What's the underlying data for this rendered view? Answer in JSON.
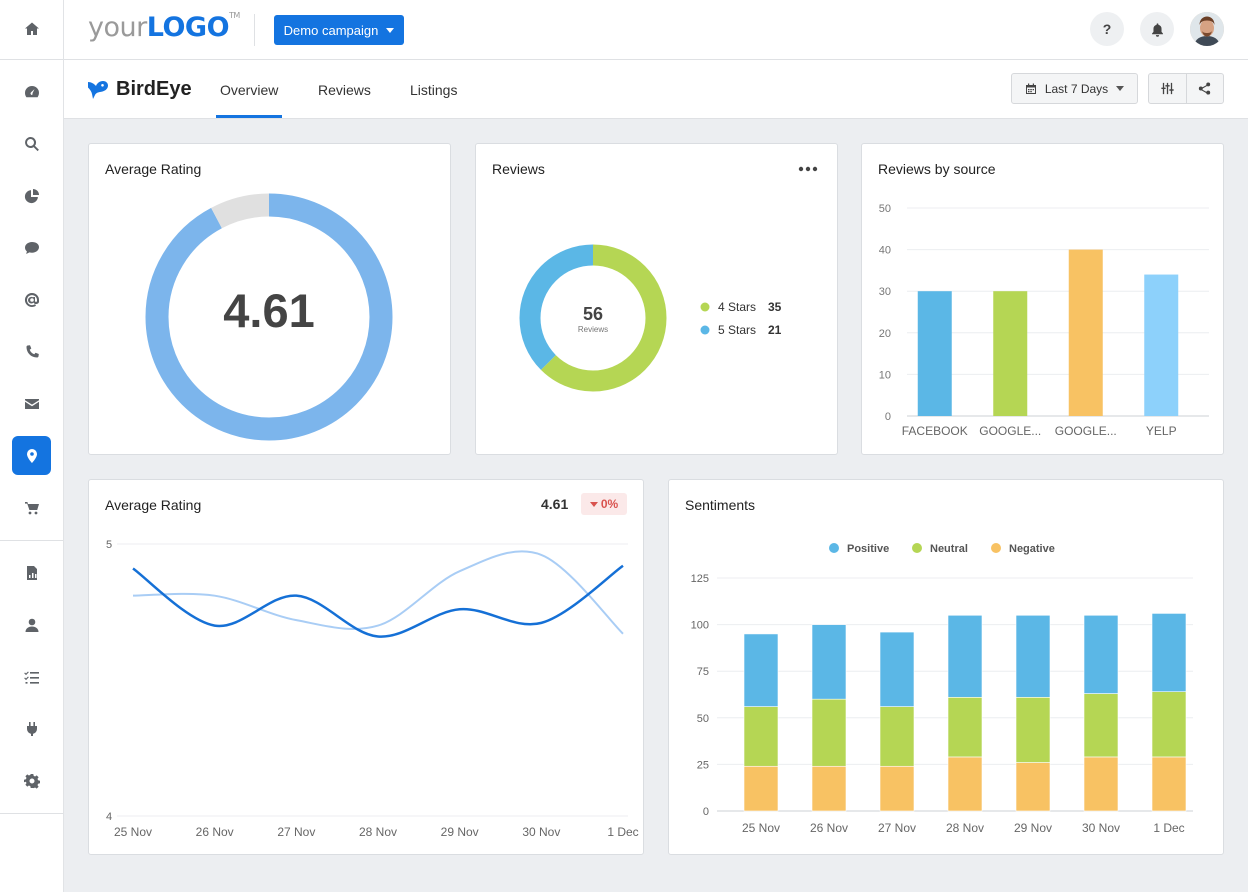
{
  "header": {
    "logo_part1": "your",
    "logo_part2": "LOGO",
    "logo_tm": "TM",
    "campaign_label": "Demo campaign",
    "help_label": "?"
  },
  "sidebar": {
    "icons": [
      "home-icon",
      "dashboard-icon",
      "search-icon",
      "pie-chart-icon",
      "chat-icon",
      "at-sign-icon",
      "phone-icon",
      "mail-icon",
      "location-pin-icon",
      "cart-icon",
      "report-icon",
      "user-icon",
      "checklist-icon",
      "plug-icon",
      "gear-icon"
    ],
    "active": "location-pin-icon"
  },
  "subheader": {
    "brand": "BirdEye",
    "tabs": [
      "Overview",
      "Reviews",
      "Listings"
    ],
    "active_tab": "Overview",
    "date_range": "Last 7 Days"
  },
  "colors": {
    "accent": "#1474e0",
    "light_blue": "#5bb7e6",
    "green": "#b5d654",
    "orange": "#f8c263",
    "sky": "#8dd1fb",
    "donut_blue": "#7cb5ec",
    "donut_gray": "#e0e0e0",
    "negative": "#d9534f"
  },
  "cards": {
    "avg_rating": {
      "title": "Average Rating",
      "value": "4.61"
    },
    "reviews": {
      "title": "Reviews",
      "total": "56",
      "total_label": "Reviews",
      "legend": [
        {
          "label": "4 Stars",
          "value": "35"
        },
        {
          "label": "5 Stars",
          "value": "21"
        }
      ]
    },
    "reviews_by_source": {
      "title": "Reviews by source"
    },
    "avg_rating_trend": {
      "title": "Average Rating",
      "value": "4.61",
      "change": "0%"
    },
    "sentiments": {
      "title": "Sentiments"
    }
  },
  "chart_data": [
    {
      "type": "pie",
      "title": "Average Rating",
      "center_label": "4.61",
      "slices": [
        {
          "label": "rating",
          "value": 4.61,
          "color": "#7cb5ec"
        },
        {
          "label": "remainder",
          "value": 0.39,
          "color": "#e0e0e0"
        }
      ]
    },
    {
      "type": "pie",
      "title": "Reviews",
      "center_label": "56",
      "center_sublabel": "Reviews",
      "slices": [
        {
          "label": "4 Stars",
          "value": 35,
          "color": "#b5d654"
        },
        {
          "label": "5 Stars",
          "value": 21,
          "color": "#5bb7e6"
        }
      ]
    },
    {
      "type": "bar",
      "title": "Reviews by source",
      "categories": [
        "FACEBOOK",
        "GOOGLE...",
        "GOOGLE...",
        "YELP"
      ],
      "values": [
        30,
        30,
        40,
        34
      ],
      "colors": [
        "#5bb7e6",
        "#b5d654",
        "#f8c263",
        "#8dd1fb"
      ],
      "ylim": [
        0,
        50
      ],
      "yticks": [
        0,
        10,
        20,
        30,
        40,
        50
      ],
      "grid": true
    },
    {
      "type": "line",
      "title": "Average Rating",
      "x": [
        "25 Nov",
        "26 Nov",
        "27 Nov",
        "28 Nov",
        "29 Nov",
        "30 Nov",
        "1 Dec"
      ],
      "ylim": [
        4,
        5
      ],
      "yticks": [
        4,
        5
      ],
      "series": [
        {
          "values": [
            4.91,
            4.7,
            4.81,
            4.66,
            4.76,
            4.71,
            4.92
          ],
          "color": "#1570d6"
        },
        {
          "values": [
            4.81,
            4.81,
            4.72,
            4.7,
            4.9,
            4.96,
            4.67
          ],
          "color": "#a9cdf5"
        }
      ]
    },
    {
      "type": "bar",
      "stacked": true,
      "title": "Sentiments",
      "categories": [
        "25 Nov",
        "26 Nov",
        "27 Nov",
        "28 Nov",
        "29 Nov",
        "30 Nov",
        "1 Dec"
      ],
      "series": [
        {
          "name": "Negative",
          "values": [
            24,
            24,
            24,
            29,
            26,
            29,
            29
          ],
          "color": "#f8c263"
        },
        {
          "name": "Neutral",
          "values": [
            32,
            36,
            32,
            32,
            35,
            34,
            35
          ],
          "color": "#b5d654"
        },
        {
          "name": "Positive",
          "values": [
            39,
            40,
            40,
            44,
            44,
            42,
            42
          ],
          "color": "#5bb7e6"
        }
      ],
      "legend_order": [
        "Positive",
        "Neutral",
        "Negative"
      ],
      "legend_position": "top-center",
      "ylim": [
        0,
        125
      ],
      "yticks": [
        0,
        25,
        50,
        75,
        100,
        125
      ],
      "grid": true
    }
  ]
}
